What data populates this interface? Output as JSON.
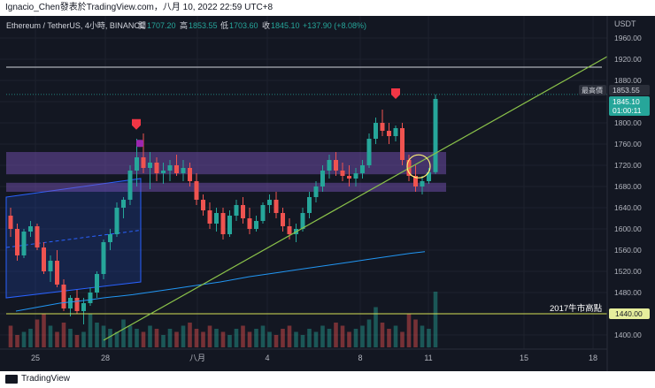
{
  "header": {
    "publisher": "Ignacio_Chen發表於TradingView.com，八月 10, 2022 22:59 UTC+8"
  },
  "legend": {
    "symbol": "Ethereum / TetherUS, 4小時, BINANCE",
    "open_label": "開",
    "open": "1707.20",
    "high_label": "高",
    "high": "1853.55",
    "low_label": "低",
    "low": "1703.60",
    "close_label": "收",
    "close": "1845.10",
    "change": "+137.90 (+8.08%)"
  },
  "price_axis": {
    "currency": "USDT",
    "ticks": [
      "1960.00",
      "1920.00",
      "1880.00",
      "1840.00",
      "1800.00",
      "1760.00",
      "1720.00",
      "1680.00",
      "1640.00",
      "1600.00",
      "1560.00",
      "1520.00",
      "1480.00",
      "1440.00",
      "1400.00"
    ],
    "high_tag_label": "最高價",
    "high_tag_value": "1853.55",
    "last_price": "1845.10",
    "countdown": "01:00:11",
    "ref_level": "1440.00",
    "ref_label": "2017牛市高點"
  },
  "time_axis": {
    "labels": [
      "25",
      "28",
      "八月",
      "4",
      "8",
      "11",
      "15",
      "18"
    ]
  },
  "footer": {
    "brand": "TradingView"
  },
  "colors": {
    "background": "#131722",
    "up": "#26a69a",
    "down": "#ef5350",
    "trendline": "#8bc34a",
    "zone": "#7e57c2",
    "channel": "#2962ff",
    "ma": "#2196f3",
    "ref_line": "#d4e157",
    "marker": "#f23645"
  },
  "chart_data": {
    "type": "candlestick",
    "symbol": "ETHUSDT",
    "ylim": [
      1385,
      1975
    ],
    "annotations": {
      "horizontal_resistance": 1905,
      "supply_zone": [
        1703,
        1745
      ],
      "demand_zone": [
        1670,
        1687
      ],
      "reference_level": 1440,
      "trendline": [
        [
          0.1,
          1390
        ],
        [
          38.4,
          1925
        ]
      ],
      "channel_upper": [
        [
          0,
          1660
        ],
        [
          9.5,
          1695
        ]
      ],
      "channel_lower": [
        [
          0,
          1470
        ],
        [
          9.5,
          1500
        ]
      ]
    },
    "candles": [
      [
        1625,
        1640,
        1585,
        1600
      ],
      [
        1600,
        1610,
        1540,
        1550
      ],
      [
        1550,
        1600,
        1545,
        1595
      ],
      [
        1595,
        1615,
        1585,
        1605
      ],
      [
        1605,
        1610,
        1560,
        1565
      ],
      [
        1565,
        1575,
        1515,
        1520
      ],
      [
        1520,
        1550,
        1500,
        1540
      ],
      [
        1540,
        1560,
        1490,
        1495
      ],
      [
        1495,
        1505,
        1445,
        1450
      ],
      [
        1450,
        1475,
        1435,
        1470
      ],
      [
        1470,
        1485,
        1440,
        1445
      ],
      [
        1445,
        1470,
        1420,
        1460
      ],
      [
        1460,
        1490,
        1455,
        1480
      ],
      [
        1480,
        1520,
        1470,
        1515
      ],
      [
        1515,
        1580,
        1505,
        1575
      ],
      [
        1575,
        1600,
        1560,
        1590
      ],
      [
        1590,
        1650,
        1585,
        1640
      ],
      [
        1640,
        1660,
        1620,
        1655
      ],
      [
        1655,
        1720,
        1645,
        1710
      ],
      [
        1710,
        1770,
        1680,
        1735
      ],
      [
        1735,
        1780,
        1705,
        1715
      ],
      [
        1715,
        1745,
        1675,
        1725
      ],
      [
        1725,
        1735,
        1690,
        1705
      ],
      [
        1705,
        1725,
        1685,
        1710
      ],
      [
        1710,
        1730,
        1690,
        1720
      ],
      [
        1720,
        1740,
        1700,
        1705
      ],
      [
        1705,
        1730,
        1690,
        1715
      ],
      [
        1715,
        1725,
        1680,
        1690
      ],
      [
        1690,
        1705,
        1645,
        1655
      ],
      [
        1655,
        1665,
        1625,
        1635
      ],
      [
        1635,
        1650,
        1600,
        1610
      ],
      [
        1610,
        1640,
        1595,
        1630
      ],
      [
        1630,
        1640,
        1580,
        1590
      ],
      [
        1590,
        1635,
        1585,
        1625
      ],
      [
        1625,
        1655,
        1615,
        1645
      ],
      [
        1645,
        1660,
        1610,
        1620
      ],
      [
        1620,
        1640,
        1590,
        1600
      ],
      [
        1600,
        1625,
        1595,
        1615
      ],
      [
        1615,
        1650,
        1610,
        1645
      ],
      [
        1645,
        1665,
        1630,
        1655
      ],
      [
        1655,
        1670,
        1620,
        1630
      ],
      [
        1630,
        1640,
        1595,
        1605
      ],
      [
        1605,
        1620,
        1580,
        1590
      ],
      [
        1590,
        1610,
        1575,
        1600
      ],
      [
        1600,
        1640,
        1595,
        1630
      ],
      [
        1630,
        1670,
        1620,
        1660
      ],
      [
        1660,
        1690,
        1650,
        1680
      ],
      [
        1680,
        1720,
        1670,
        1710
      ],
      [
        1710,
        1740,
        1695,
        1730
      ],
      [
        1730,
        1745,
        1700,
        1710
      ],
      [
        1710,
        1725,
        1690,
        1700
      ],
      [
        1700,
        1720,
        1680,
        1695
      ],
      [
        1695,
        1715,
        1680,
        1705
      ],
      [
        1705,
        1730,
        1695,
        1720
      ],
      [
        1720,
        1780,
        1715,
        1770
      ],
      [
        1770,
        1810,
        1760,
        1800
      ],
      [
        1800,
        1825,
        1775,
        1785
      ],
      [
        1785,
        1800,
        1760,
        1775
      ],
      [
        1775,
        1795,
        1765,
        1790
      ],
      [
        1790,
        1800,
        1720,
        1730
      ],
      [
        1730,
        1740,
        1690,
        1700
      ],
      [
        1700,
        1720,
        1670,
        1680
      ],
      [
        1680,
        1700,
        1665,
        1690
      ],
      [
        1690,
        1715,
        1685,
        1707
      ],
      [
        1707,
        1853.55,
        1703.6,
        1845.1
      ]
    ],
    "ma": [
      1445,
      1450,
      1455,
      1460,
      1463,
      1466,
      1470,
      1473,
      1476,
      1480,
      1484,
      1488,
      1492,
      1496,
      1500,
      1505,
      1510,
      1514,
      1518,
      1522,
      1526,
      1530,
      1534,
      1538,
      1542,
      1546,
      1550,
      1554,
      1557
    ],
    "volume": [
      35,
      20,
      25,
      30,
      45,
      55,
      35,
      25,
      40,
      30,
      20,
      25,
      55,
      40,
      35,
      30,
      25,
      45,
      35,
      30,
      25,
      35,
      30,
      20,
      30,
      25,
      35,
      40,
      30,
      25,
      35,
      30,
      25,
      20,
      30,
      35,
      25,
      30,
      35,
      25,
      20,
      30,
      35,
      25,
      20,
      30,
      25,
      35,
      30,
      40,
      35,
      25,
      30,
      35,
      45,
      65,
      40,
      30,
      35,
      25,
      55,
      45,
      35,
      30,
      90
    ]
  }
}
